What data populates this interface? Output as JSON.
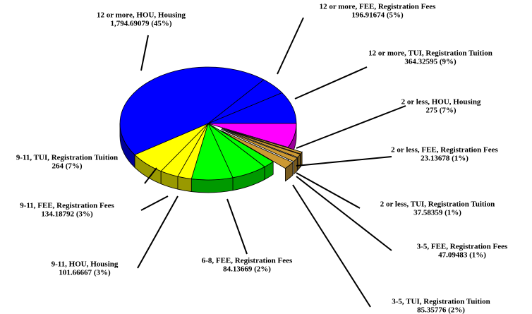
{
  "chart_data": {
    "type": "pie",
    "categories": [
      "12 or more, TUI, Registration Tuition",
      "12 or more, FEE, Registration Fees",
      "12 or more, HOU, Housing",
      "9-11, TUI, Registration Tuition",
      "9-11, FEE, Registration Fees",
      "9-11, HOU, Housing",
      null,
      null,
      "6-8, FEE, Registration Fees",
      "3-5, TUI, Registration Tuition",
      "3-5, FEE, Registration Fees",
      "2 or less, TUI, Registration Tuition",
      "2 or less, FEE, Registration Fees",
      "2 or less, HOU, Housing"
    ],
    "values": [
      364.32595,
      196.91674,
      1794.69079,
      264,
      134.18792,
      101.66667,
      300,
      260,
      84.13669,
      85.35776,
      47.09483,
      37.58359,
      23.13678,
      275
    ],
    "value_labels": [
      "364.32595 (9%)",
      "196.91674 (5%)",
      "1,794.69079 (45%)",
      "264 (7%)",
      "134.18792 (3%)",
      "101.66667 (3%)",
      null,
      null,
      "84.13669 (2%)",
      "85.35776 (2%)",
      "47.09483 (1%)",
      "37.58359 (1%)",
      "23.13678 (1%)",
      "275 (7%)"
    ],
    "colors": [
      "#0000ff",
      "#0000ff",
      "#0000ff",
      "#ffff00",
      "#ffff00",
      "#ffff00",
      "#00ff00",
      "#00ff00",
      "#00ff00",
      "#cc9933",
      "#cc9933",
      "#cc9933",
      "#cc9933",
      "#ff00ff"
    ],
    "exploded": [
      false,
      false,
      false,
      false,
      false,
      false,
      false,
      false,
      false,
      true,
      true,
      true,
      true,
      false
    ]
  }
}
